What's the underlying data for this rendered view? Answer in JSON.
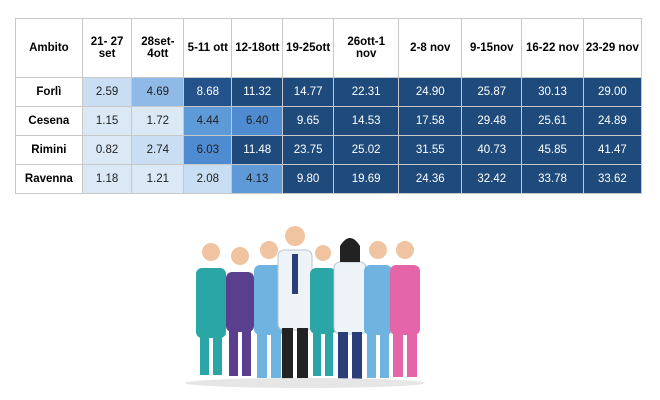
{
  "table": {
    "header": [
      "Ambito",
      "21- 27 set",
      "28set-4ott",
      "5-11 ott",
      "12-18ott",
      "19-25ott",
      "26ott-1 nov",
      "2-8 nov",
      "9-15nov",
      "16-22 nov",
      "23-29 nov"
    ],
    "rows": [
      {
        "name": "Forlì",
        "cells": [
          {
            "text": "2.59",
            "color": "#c9def3"
          },
          {
            "text": "4.69",
            "color": "#8fb9e6"
          },
          {
            "text": "8.68",
            "color": "#24528a"
          },
          {
            "text": "11.32",
            "color": "#1f4a7c"
          },
          {
            "text": "14.77",
            "color": "#1f4a7c"
          },
          {
            "text": "22.31",
            "color": "#1f4a7c"
          },
          {
            "text": "24.90",
            "color": "#1f4a7c"
          },
          {
            "text": "25.87",
            "color": "#1f4a7c"
          },
          {
            "text": "30.13",
            "color": "#1f4a7c"
          },
          {
            "text": "29.00",
            "color": "#1f4a7c"
          }
        ]
      },
      {
        "name": "Cesena",
        "cells": [
          {
            "text": "1.15",
            "color": "#dbe9f7"
          },
          {
            "text": "1.72",
            "color": "#dbe9f7"
          },
          {
            "text": "4.44",
            "color": "#5f9ad8"
          },
          {
            "text": "6.40",
            "color": "#4f8bd0"
          },
          {
            "text": "9.65",
            "color": "#1f4a7c"
          },
          {
            "text": "14.53",
            "color": "#1f4a7c"
          },
          {
            "text": "17.58",
            "color": "#1f4a7c"
          },
          {
            "text": "29.48",
            "color": "#1f4a7c"
          },
          {
            "text": "25.61",
            "color": "#1f4a7c"
          },
          {
            "text": "24.89",
            "color": "#1f4a7c"
          }
        ]
      },
      {
        "name": "Rimini",
        "cells": [
          {
            "text": "0.82",
            "color": "#dbe9f7"
          },
          {
            "text": "2.74",
            "color": "#c9def3"
          },
          {
            "text": "6.03",
            "color": "#4f8bd0"
          },
          {
            "text": "11.48",
            "color": "#1f4a7c"
          },
          {
            "text": "23.75",
            "color": "#1f4a7c"
          },
          {
            "text": "25.02",
            "color": "#1f4a7c"
          },
          {
            "text": "31.55",
            "color": "#1f4a7c"
          },
          {
            "text": "40.73",
            "color": "#1f4a7c"
          },
          {
            "text": "45.85",
            "color": "#1f4a7c"
          },
          {
            "text": "41.47",
            "color": "#1f4a7c"
          }
        ]
      },
      {
        "name": "Ravenna",
        "cells": [
          {
            "text": "1.18",
            "color": "#dbe9f7"
          },
          {
            "text": "1.21",
            "color": "#dbe9f7"
          },
          {
            "text": "2.08",
            "color": "#c9def3"
          },
          {
            "text": "4.13",
            "color": "#5f9ad8"
          },
          {
            "text": "9.80",
            "color": "#1f4a7c"
          },
          {
            "text": "19.69",
            "color": "#1f4a7c"
          },
          {
            "text": "24.36",
            "color": "#1f4a7c"
          },
          {
            "text": "32.42",
            "color": "#1f4a7c"
          },
          {
            "text": "33.78",
            "color": "#1f4a7c"
          },
          {
            "text": "33.62",
            "color": "#1f4a7c"
          }
        ]
      }
    ]
  }
}
